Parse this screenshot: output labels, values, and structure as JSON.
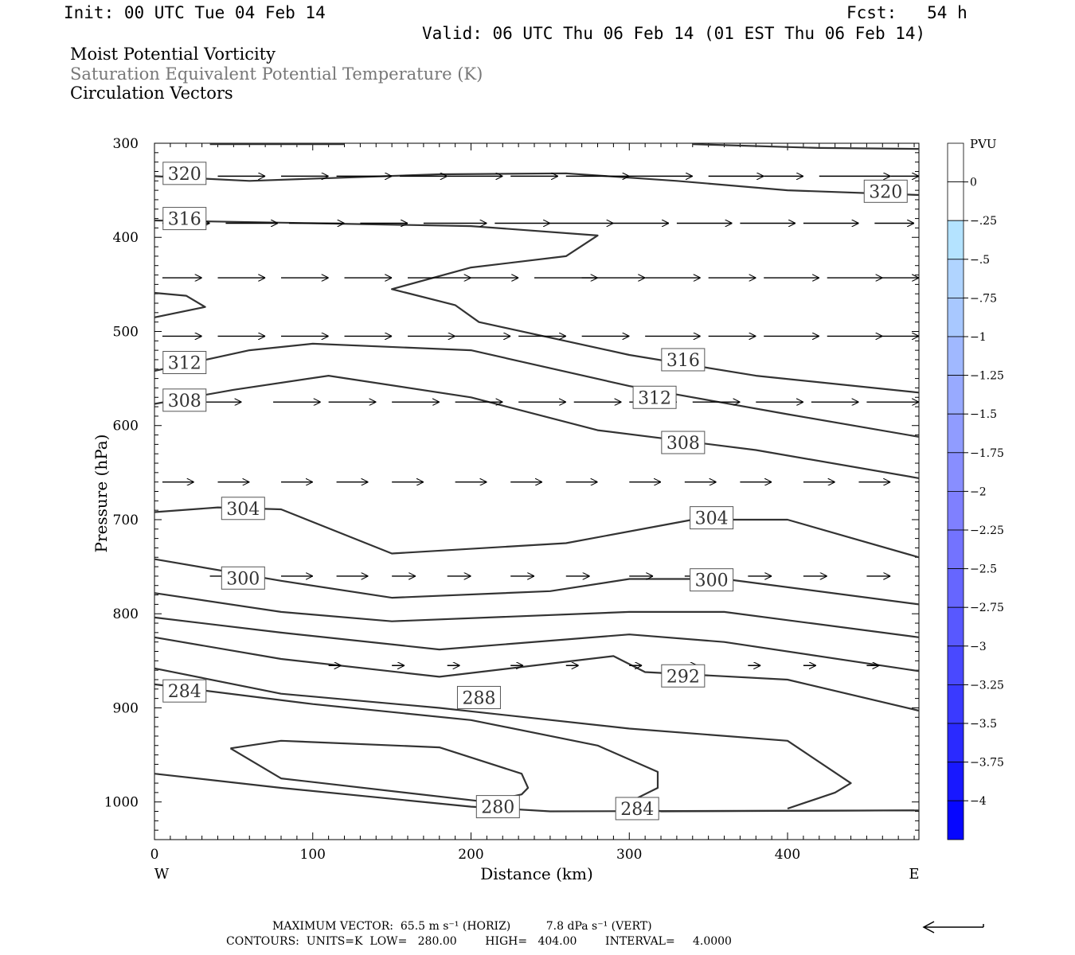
{
  "header": {
    "init": "Init: 00 UTC Tue 04 Feb 14",
    "fcst": "Fcst:   54 h",
    "valid": "Valid: 06 UTC Thu 06 Feb 14 (01 EST Thu 06 Feb 14)",
    "line1": "Moist Potential Vorticity",
    "line2": "Saturation Equivalent Potential Temperature (K)",
    "line3": "Circulation Vectors"
  },
  "chart_data": {
    "type": "cross-section",
    "xlabel": "Distance (km)",
    "ylabel": "Pressure (hPa)",
    "xlim": [
      0,
      483
    ],
    "ylim": [
      1040,
      300
    ],
    "x_ticks": [
      0,
      100,
      200,
      300,
      400
    ],
    "y_ticks": [
      300,
      400,
      500,
      600,
      700,
      800,
      900,
      1000
    ],
    "x_end_labels": {
      "left": "W",
      "right": "E"
    },
    "contours": [
      {
        "level": "320",
        "points": [
          [
            0,
            335
          ],
          [
            60,
            340
          ],
          [
            180,
            333
          ],
          [
            260,
            332
          ],
          [
            330,
            340
          ],
          [
            400,
            350
          ],
          [
            483,
            355
          ]
        ],
        "labels": [
          [
            19,
            332
          ],
          [
            462,
            351
          ]
        ]
      },
      {
        "level": "",
        "points": [
          [
            35,
            301
          ],
          [
            120,
            301
          ]
        ],
        "labels": []
      },
      {
        "level": "",
        "points": [
          [
            340,
            301
          ],
          [
            420,
            305
          ],
          [
            483,
            306
          ]
        ],
        "labels": []
      },
      {
        "level": "316",
        "points": [
          [
            0,
            382
          ],
          [
            100,
            385
          ],
          [
            200,
            388
          ],
          [
            280,
            398
          ],
          [
            260,
            420
          ],
          [
            200,
            432
          ],
          [
            150,
            455
          ],
          [
            190,
            472
          ],
          [
            205,
            490
          ],
          [
            300,
            525
          ],
          [
            380,
            547
          ],
          [
            483,
            565
          ]
        ],
        "labels": [
          [
            19,
            380
          ],
          [
            334,
            530
          ]
        ]
      },
      {
        "level": "",
        "points": [
          [
            0,
            459
          ],
          [
            20,
            462
          ],
          [
            32,
            474
          ],
          [
            0,
            485
          ]
        ],
        "labels": []
      },
      {
        "level": "312",
        "points": [
          [
            0,
            542
          ],
          [
            60,
            520
          ],
          [
            100,
            513
          ],
          [
            200,
            520
          ],
          [
            300,
            558
          ],
          [
            400,
            588
          ],
          [
            483,
            612
          ]
        ],
        "labels": [
          [
            19,
            533
          ],
          [
            316,
            570
          ]
        ]
      },
      {
        "level": "308",
        "points": [
          [
            0,
            577
          ],
          [
            50,
            562
          ],
          [
            110,
            547
          ],
          [
            200,
            570
          ],
          [
            280,
            605
          ],
          [
            380,
            626
          ],
          [
            483,
            656
          ]
        ],
        "labels": [
          [
            19,
            573
          ],
          [
            334,
            618
          ]
        ]
      },
      {
        "level": "304",
        "points": [
          [
            0,
            692
          ],
          [
            40,
            687
          ],
          [
            80,
            689
          ],
          [
            150,
            736
          ],
          [
            260,
            725
          ],
          [
            340,
            700
          ],
          [
            400,
            700
          ],
          [
            483,
            740
          ]
        ],
        "labels": [
          [
            56,
            688
          ],
          [
            352,
            698
          ]
        ]
      },
      {
        "level": "300",
        "points": [
          [
            0,
            742
          ],
          [
            80,
            765
          ],
          [
            150,
            783
          ],
          [
            250,
            776
          ],
          [
            300,
            763
          ],
          [
            360,
            763
          ],
          [
            483,
            790
          ]
        ],
        "labels": [
          [
            56,
            762
          ],
          [
            352,
            764
          ]
        ]
      },
      {
        "level": "",
        "points": [
          [
            0,
            778
          ],
          [
            80,
            798
          ],
          [
            150,
            808
          ],
          [
            300,
            798
          ],
          [
            360,
            798
          ],
          [
            483,
            825
          ]
        ],
        "labels": []
      },
      {
        "level": "",
        "points": [
          [
            0,
            804
          ],
          [
            80,
            820
          ],
          [
            180,
            838
          ],
          [
            300,
            822
          ],
          [
            360,
            830
          ],
          [
            483,
            861
          ]
        ],
        "labels": []
      },
      {
        "level": "292",
        "points": [
          [
            0,
            825
          ],
          [
            80,
            848
          ],
          [
            180,
            867
          ],
          [
            290,
            845
          ],
          [
            310,
            862
          ],
          [
            400,
            870
          ],
          [
            483,
            903
          ]
        ],
        "labels": [
          [
            334,
            866
          ]
        ]
      },
      {
        "level": "288",
        "points": [
          [
            0,
            858
          ],
          [
            80,
            885
          ],
          [
            180,
            900
          ],
          [
            300,
            922
          ],
          [
            400,
            935
          ],
          [
            440,
            980
          ],
          [
            430,
            990
          ],
          [
            400,
            1007
          ]
        ],
        "labels": [
          [
            205,
            889
          ]
        ]
      },
      {
        "level": "284",
        "points": [
          [
            0,
            875
          ],
          [
            100,
            896
          ],
          [
            200,
            913
          ],
          [
            280,
            940
          ],
          [
            318,
            968
          ],
          [
            318,
            985
          ],
          [
            300,
            1000
          ],
          [
            320,
            1010
          ],
          [
            483,
            1009
          ]
        ],
        "labels": [
          [
            19,
            882
          ],
          [
            305,
            1007
          ]
        ]
      },
      {
        "level": "280",
        "points": [
          [
            0,
            970
          ],
          [
            80,
            985
          ],
          [
            200,
            1005
          ],
          [
            250,
            1010
          ],
          [
            480,
            1009
          ]
        ],
        "labels": [
          [
            217,
            1005
          ]
        ]
      },
      {
        "level": "",
        "points": [
          [
            48,
            943
          ],
          [
            80,
            935
          ],
          [
            180,
            942
          ],
          [
            232,
            970
          ],
          [
            236,
            985
          ],
          [
            232,
            992
          ],
          [
            210,
            1000
          ],
          [
            80,
            975
          ],
          [
            48,
            943
          ]
        ],
        "labels": []
      }
    ],
    "vectors": [
      {
        "p": 335,
        "y_rows": [
          [
            5,
            335,
            30
          ],
          [
            40,
            335,
            70
          ],
          [
            80,
            335,
            110
          ],
          [
            115,
            335,
            150
          ],
          [
            155,
            335,
            185
          ],
          [
            185,
            335,
            220
          ],
          [
            225,
            335,
            255
          ],
          [
            260,
            335,
            300
          ],
          [
            300,
            335,
            340
          ],
          [
            350,
            335,
            385
          ],
          [
            385,
            335,
            410
          ],
          [
            420,
            335,
            465
          ],
          [
            465,
            335,
            483
          ]
        ]
      },
      {
        "p": 385,
        "y_rows": [
          [
            5,
            385,
            35
          ],
          [
            45,
            385,
            78
          ],
          [
            85,
            385,
            120
          ],
          [
            130,
            385,
            160
          ],
          [
            170,
            385,
            210
          ],
          [
            215,
            385,
            250
          ],
          [
            250,
            385,
            290
          ],
          [
            290,
            385,
            325
          ],
          [
            330,
            385,
            365
          ],
          [
            370,
            385,
            405
          ],
          [
            410,
            385,
            445
          ],
          [
            455,
            385,
            480
          ]
        ]
      },
      {
        "p": 443,
        "y_rows": [
          [
            5,
            443,
            30
          ],
          [
            40,
            443,
            70
          ],
          [
            80,
            443,
            110
          ],
          [
            120,
            443,
            150
          ],
          [
            160,
            443,
            200
          ],
          [
            200,
            443,
            230
          ],
          [
            240,
            443,
            280
          ],
          [
            270,
            443,
            310
          ],
          [
            310,
            443,
            345
          ],
          [
            350,
            443,
            380
          ],
          [
            385,
            443,
            420
          ],
          [
            425,
            443,
            460
          ],
          [
            460,
            443,
            483
          ]
        ]
      },
      {
        "p": 505,
        "y_rows": [
          [
            5,
            505,
            30
          ],
          [
            40,
            505,
            70
          ],
          [
            80,
            505,
            110
          ],
          [
            120,
            505,
            150
          ],
          [
            160,
            505,
            190
          ],
          [
            190,
            505,
            225
          ],
          [
            230,
            505,
            260
          ],
          [
            270,
            505,
            300
          ],
          [
            310,
            505,
            345
          ],
          [
            350,
            505,
            380
          ],
          [
            385,
            505,
            420
          ],
          [
            425,
            505,
            460
          ],
          [
            460,
            505,
            483
          ]
        ]
      },
      {
        "p": 575,
        "y_rows": [
          [
            15,
            575,
            55
          ],
          [
            75,
            575,
            105
          ],
          [
            110,
            575,
            140
          ],
          [
            150,
            575,
            180
          ],
          [
            190,
            575,
            220
          ],
          [
            230,
            575,
            260
          ],
          [
            265,
            575,
            295
          ],
          [
            300,
            575,
            330
          ],
          [
            340,
            575,
            370
          ],
          [
            380,
            575,
            410
          ],
          [
            415,
            575,
            445
          ],
          [
            450,
            575,
            483
          ]
        ]
      },
      {
        "p": 660,
        "y_rows": [
          [
            5,
            660,
            25
          ],
          [
            40,
            660,
            60
          ],
          [
            80,
            660,
            100
          ],
          [
            115,
            660,
            135
          ],
          [
            150,
            660,
            170
          ],
          [
            190,
            660,
            210
          ],
          [
            225,
            660,
            245
          ],
          [
            260,
            660,
            280
          ],
          [
            300,
            660,
            320
          ],
          [
            335,
            660,
            355
          ],
          [
            370,
            660,
            390
          ],
          [
            410,
            660,
            430
          ],
          [
            445,
            660,
            465
          ]
        ]
      },
      {
        "p": 760,
        "y_rows": [
          [
            35,
            760,
            60
          ],
          [
            80,
            760,
            100
          ],
          [
            115,
            760,
            135
          ],
          [
            150,
            760,
            165
          ],
          [
            185,
            760,
            200
          ],
          [
            225,
            760,
            240
          ],
          [
            260,
            760,
            275
          ],
          [
            300,
            760,
            315
          ],
          [
            335,
            760,
            350
          ],
          [
            375,
            760,
            390
          ],
          [
            410,
            760,
            425
          ],
          [
            450,
            760,
            465
          ]
        ]
      },
      {
        "p": 855,
        "y_rows": [
          [
            110,
            855,
            118
          ],
          [
            150,
            855,
            158
          ],
          [
            185,
            855,
            193
          ],
          [
            225,
            855,
            233
          ],
          [
            260,
            855,
            268
          ],
          [
            300,
            855,
            308
          ],
          [
            335,
            855,
            343
          ],
          [
            375,
            855,
            383
          ],
          [
            410,
            855,
            418
          ],
          [
            450,
            855,
            458
          ]
        ]
      }
    ],
    "colorbar": {
      "title": "PVU",
      "levels": [
        "0",
        "-.25",
        "-.5",
        "-.75",
        "-1",
        "-1.25",
        "-1.5",
        "-1.75",
        "-2",
        "-2.25",
        "-2.5",
        "-2.75",
        "-3",
        "-3.25",
        "-3.5",
        "-3.75",
        "-4"
      ],
      "colors": [
        "#ffffff",
        "#ffffff",
        "#b4e3ff",
        "#b0d4ff",
        "#a8c8ff",
        "#a0b8ff",
        "#98aaff",
        "#909cff",
        "#888eff",
        "#7f80ff",
        "#7373ff",
        "#6666ff",
        "#5858ff",
        "#4949ff",
        "#3a3aff",
        "#2a2aff",
        "#1818ff",
        "#0606ff"
      ]
    }
  },
  "footer": {
    "line1": "MAXIMUM VECTOR:  65.5 m s⁻¹ (HORIZ)          7.8 dPa s⁻¹ (VERT)",
    "line2": "CONTOURS:  UNITS=K  LOW=   280.00        HIGH=   404.00        INTERVAL=     4.0000"
  }
}
